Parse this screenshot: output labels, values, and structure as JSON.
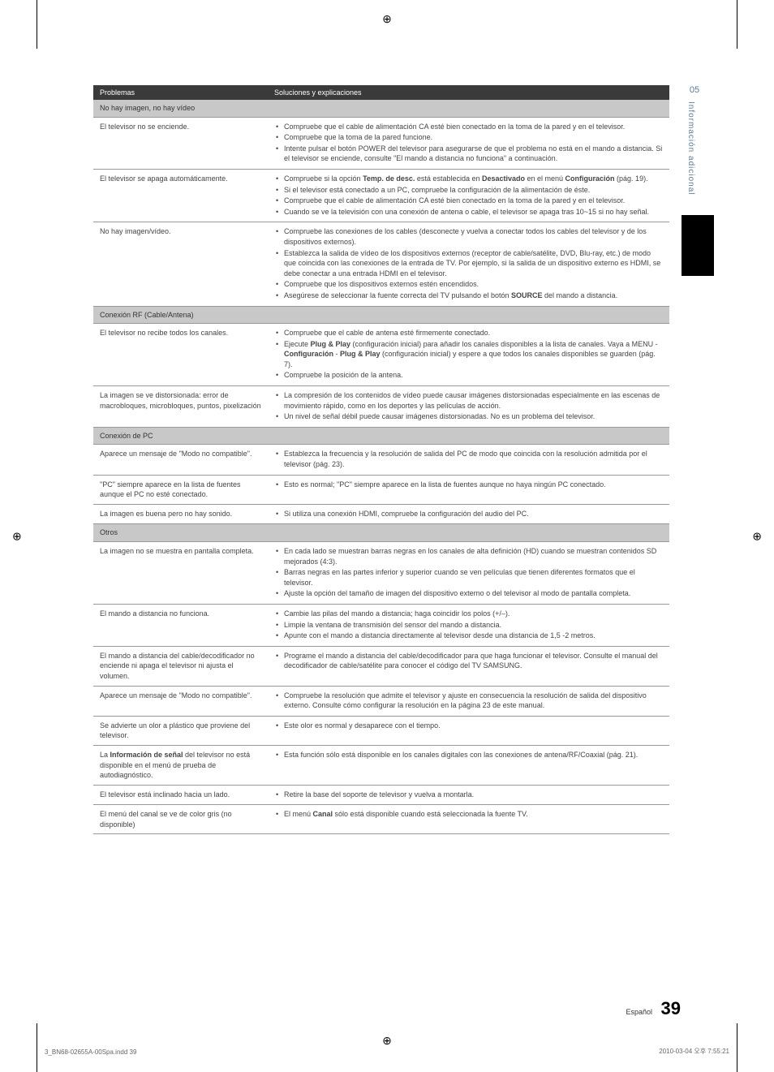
{
  "regMark": "⊕",
  "sidebar": {
    "num": "05",
    "text": "Información adicional"
  },
  "headers": {
    "problems": "Problemas",
    "solutions": "Soluciones y explicaciones"
  },
  "sections": [
    {
      "title": "No hay imagen, no hay vídeo",
      "rows": [
        {
          "problem": "El televisor no se enciende.",
          "solutions": [
            "Compruebe que el cable de alimentación CA esté bien conectado en la toma de la pared y en el televisor.",
            "Compruebe que la toma de la pared funcione.",
            "Intente pulsar el botón POWER del televisor para asegurarse de que el problema no está en el mando a distancia. Si el televisor se enciende, consulte \"El mando a distancia no funciona\" a continuación."
          ]
        },
        {
          "problem": "El televisor se apaga automáticamente.",
          "solutions": [
            "Compruebe si la opción <b>Temp. de desc.</b> está establecida en <b>Desactivado</b> en el menú <b>Configuración</b> (pág. 19).",
            "Si el televisor está conectado a un PC, compruebe la configuración de la alimentación de éste.",
            "Compruebe que el cable de alimentación CA esté bien conectado en la toma de la pared y en el televisor.",
            "Cuando se ve la televisión con una conexión de antena o cable, el televisor se apaga tras 10~15 si no hay señal."
          ]
        },
        {
          "problem": "No hay imagen/vídeo.",
          "solutions": [
            "Compruebe las conexiones de los cables (desconecte y vuelva a conectar todos los cables del televisor y de los dispositivos externos).",
            "Establezca la salida de vídeo de los dispositivos externos (receptor de cable/satélite, DVD, Blu-ray, etc.) de modo que coincida con las conexiones de la entrada de TV. Por ejemplo, si la salida de un dispositivo externo es HDMI, se debe conectar a una entrada HDMI en el televisor.",
            "Compruebe que los dispositivos externos estén encendidos.",
            "Asegúrese de seleccionar la fuente correcta del TV pulsando el botón <b>SOURCE</b> del mando a distancia."
          ]
        }
      ]
    },
    {
      "title": "Conexión RF (Cable/Antena)",
      "rows": [
        {
          "problem": "El televisor no recibe todos los canales.",
          "solutions": [
            "Compruebe que el cable de antena esté firmemente conectado.",
            "Ejecute <b>Plug & Play</b> (configuración inicial) para añadir los canales disponibles a la lista de canales. Vaya a MENU - <b>Configuración</b> - <b>Plug & Play</b> (configuración inicial) y espere a que todos los canales disponibles se guarden (pág. 7).",
            "Compruebe la posición de la antena."
          ]
        },
        {
          "problem": "La imagen se ve distorsionada: error de macrobloques, microbloques, puntos, pixelización",
          "solutions": [
            "La compresión de los contenidos de vídeo puede causar imágenes distorsionadas especialmente en las escenas de movimiento rápido, como en los deportes y las películas de acción.",
            "Un nivel de señal débil puede causar imágenes distorsionadas. No es un problema del televisor."
          ]
        }
      ]
    },
    {
      "title": "Conexión de PC",
      "rows": [
        {
          "problem": "Aparece un mensaje de \"Modo no compatible\".",
          "solutions": [
            "Establezca la frecuencia y la resolución de salida del PC de modo que coincida con la resolución admitida por el televisor (pág. 23)."
          ]
        },
        {
          "problem": "\"PC\" siempre aparece en la lista de fuentes aunque el PC no esté conectado.",
          "solutions": [
            "Esto es normal; \"PC\" siempre aparece en la lista de fuentes aunque no haya ningún PC conectado."
          ]
        },
        {
          "problem": "La imagen es buena pero no hay sonido.",
          "solutions": [
            "Si utiliza una conexión HDMI, compruebe la configuración del audio del PC."
          ]
        }
      ]
    },
    {
      "title": "Otros",
      "rows": [
        {
          "problem": "La imagen no se muestra en pantalla completa.",
          "solutions": [
            "En cada lado se muestran barras negras en los canales de alta definición (HD) cuando se muestran contenidos SD mejorados (4:3).",
            "Barras negras en las partes inferior y superior cuando se ven películas que tienen diferentes formatos que el televisor.",
            "Ajuste la opción del tamaño de imagen del dispositivo externo o del televisor al modo de pantalla completa."
          ]
        },
        {
          "problem": "El mando a distancia no funciona.",
          "solutions": [
            "Cambie las pilas del mando a distancia; haga coincidir los polos (+/–).",
            "Limpie la ventana de transmisión del sensor del mando a distancia.",
            "Apunte con el mando a distancia directamente al televisor desde una distancia de 1,5 -2 metros."
          ]
        },
        {
          "problem": "El mando a distancia del cable/decodificador no enciende ni apaga el televisor ni ajusta el volumen.",
          "solutions": [
            "Programe el mando a distancia del cable/decodificador para que haga funcionar el televisor. Consulte el manual del decodificador de cable/satélite para conocer el código del TV SAMSUNG."
          ]
        },
        {
          "problem": "Aparece un mensaje de \"Modo no compatible\".",
          "solutions": [
            "Compruebe la resolución que admite el televisor y ajuste en consecuencia la resolución de salida del dispositivo externo. Consulte cómo configurar la resolución en la página 23 de este manual."
          ]
        },
        {
          "problem": "Se advierte un olor a plástico que proviene del televisor.",
          "solutions": [
            "Este olor es normal y desaparece con el tiempo."
          ]
        },
        {
          "problem": "La <b>Información de señal</b> del televisor no está disponible en el menú de prueba de autodiagnóstico.",
          "solutions": [
            "Esta función sólo está disponible en los canales digitales con las conexiones de antena/RF/Coaxial (pág. 21)."
          ]
        },
        {
          "problem": "El televisor está inclinado hacia un lado.",
          "solutions": [
            "Retire la base del soporte de televisor y vuelva a montarla."
          ]
        },
        {
          "problem": "El menú del canal se ve de color gris (no disponible)",
          "solutions": [
            "El menú <b>Canal</b> sólo está disponible cuando está seleccionada la fuente TV."
          ]
        }
      ]
    }
  ],
  "footer": {
    "lang": "Español",
    "pageNum": "39",
    "leftText": "3_BN68-02655A-00Spa.indd   39",
    "rightText": "2010-03-04   오후 7:55:21"
  }
}
